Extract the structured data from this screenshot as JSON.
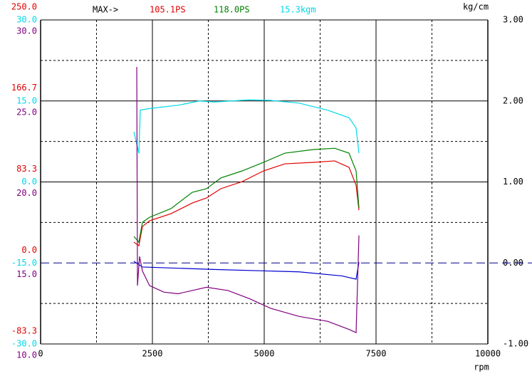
{
  "chart_data": {
    "type": "line",
    "x_label": "rpm",
    "y2_label": "kg/cm",
    "annotations": [
      {
        "text": "MAX->",
        "color": "#000000"
      },
      {
        "text": "105.1PS",
        "color": "#e00000"
      },
      {
        "text": "118.0PS",
        "color": "#008000"
      },
      {
        "text": "15.3kgm",
        "color": "#00d8e8"
      }
    ],
    "xlim": [
      0,
      10000
    ],
    "xticks": [
      0,
      2500,
      5000,
      7500,
      10000
    ],
    "xgrid_minor": [
      1250,
      3750,
      6250,
      8750
    ],
    "axes": [
      {
        "color": "#e00000",
        "lim": [
          -83.3,
          250
        ],
        "ticks": [
          {
            "value": 250,
            "label": "250.0"
          },
          166.7,
          83.3,
          {
            "value": 0,
            "label": "0.0"
          },
          -83.3
        ]
      },
      {
        "color": "#00d8e8",
        "lim": [
          -30,
          30
        ],
        "ticks": [
          {
            "value": 30,
            "label": "30.0"
          },
          {
            "value": 15,
            "label": "15.0"
          },
          {
            "value": 0,
            "label": "0.0"
          },
          {
            "value": -15,
            "label": "-15.0"
          },
          {
            "value": -30,
            "label": "-30.0"
          }
        ]
      },
      {
        "color": "#800080",
        "lim": [
          10,
          30
        ],
        "ticks": [
          {
            "value": 30,
            "label": "30.0"
          },
          {
            "value": 25,
            "label": "25.0"
          },
          {
            "value": 20,
            "label": "20.0"
          },
          {
            "value": 15,
            "label": "15.0"
          },
          {
            "value": 10,
            "label": "10.0"
          }
        ]
      }
    ],
    "y2lim": [
      -1,
      3
    ],
    "y2ticks": [
      {
        "value": 3,
        "label": "3.00"
      },
      {
        "value": 2,
        "label": "2.00"
      },
      {
        "value": 1,
        "label": "1.00"
      },
      {
        "value": 0,
        "label": "0.00"
      },
      {
        "value": -1,
        "label": "-1.00"
      }
    ],
    "y2minor": [
      2.5,
      1.5,
      0.5,
      -0.5
    ],
    "baseline": 0,
    "grid": true,
    "series": [
      {
        "color": "#e00000",
        "axis": 0,
        "x": [
          2086,
          2197,
          2277,
          2436,
          2914,
          3392,
          3710,
          4029,
          4506,
          4984,
          5462,
          6099,
          6576,
          6895,
          7054,
          7118
        ],
        "values": [
          21.4,
          17.8,
          37.5,
          43.4,
          50.7,
          61.7,
          66.9,
          76.4,
          83.7,
          94.7,
          102,
          103.5,
          105,
          98.4,
          80,
          54.4
        ]
      },
      {
        "color": "#008000",
        "axis": 0,
        "x": [
          2086,
          2197,
          2277,
          2436,
          2914,
          3392,
          3710,
          4029,
          4506,
          4984,
          5462,
          6099,
          6576,
          6895,
          7054,
          7118
        ],
        "values": [
          27.3,
          21.4,
          41.9,
          47,
          55.9,
          72.7,
          76.4,
          87.4,
          94.7,
          103.5,
          113,
          116.7,
          118,
          113,
          94.7,
          56.6
        ]
      },
      {
        "color": "#00d8e8",
        "axis": 1,
        "x": [
          2086,
          2197,
          2229,
          2436,
          3073,
          3551,
          3869,
          4666,
          5143,
          5780,
          6417,
          6895,
          7054,
          7118
        ],
        "values": [
          9.3,
          5.3,
          13.3,
          13.6,
          14.2,
          15,
          14.8,
          15.2,
          15.1,
          14.6,
          13.3,
          11.9,
          10,
          5.3
        ]
      },
      {
        "color": "#0000d0",
        "axis": "y2",
        "x": [
          2086,
          2277,
          3869,
          5780,
          6736,
          7054,
          7118
        ],
        "values": [
          0.02,
          -0.05,
          -0.08,
          -0.11,
          -0.16,
          -0.2,
          0.01
        ]
      },
      {
        "color": "#800080",
        "axis": 2,
        "x": [
          2150,
          2166,
          2213,
          2277,
          2436,
          2755,
          3073,
          3710,
          4188,
          4666,
          5143,
          5780,
          6417,
          6895,
          7054,
          7118
        ],
        "values": [
          27.1,
          13.6,
          15.4,
          14.5,
          13.6,
          13.2,
          13.1,
          13.5,
          13.3,
          12.8,
          12.2,
          11.7,
          11.4,
          10.9,
          10.7,
          16.7
        ]
      }
    ]
  }
}
